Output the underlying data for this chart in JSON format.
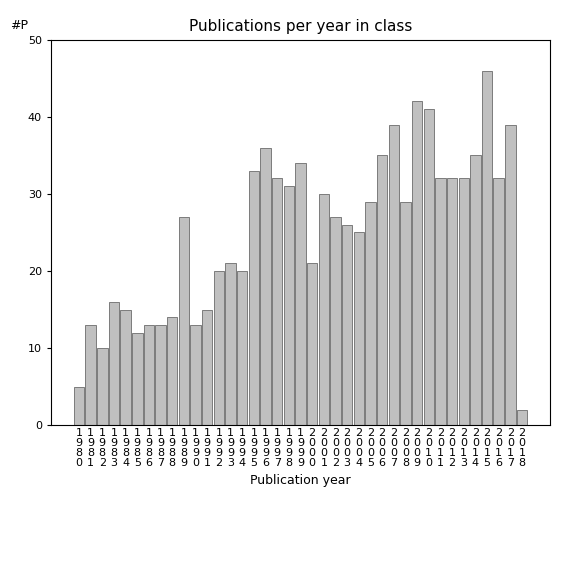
{
  "title": "Publications per year in class",
  "xlabel": "Publication year",
  "ylabel": "#P",
  "values": [
    5,
    13,
    10,
    16,
    15,
    12,
    13,
    13,
    14,
    27,
    13,
    15,
    20,
    21,
    20,
    33,
    36,
    32,
    31,
    34,
    21,
    30,
    27,
    26,
    25,
    29,
    35,
    39,
    29,
    42,
    41,
    32,
    32,
    32,
    35,
    46,
    32,
    39,
    2
  ],
  "start_year": 1980,
  "bar_color": "#c0c0c0",
  "bar_edgecolor": "#555555",
  "ylim": [
    0,
    50
  ],
  "yticks": [
    0,
    10,
    20,
    30,
    40,
    50
  ],
  "background_color": "#ffffff",
  "title_fontsize": 11,
  "label_fontsize": 9,
  "tick_fontsize": 8
}
